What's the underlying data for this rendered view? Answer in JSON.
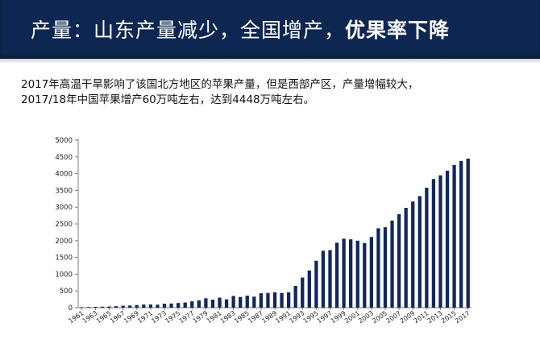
{
  "slide": {
    "title_part1": "产量：山东产量减少，全国增产，",
    "title_part2": "优果率下降",
    "description_line1": "2017年高温干旱影响了该国北方地区的苹果产量，但是西部产区，产量增幅较大，",
    "description_line2": "2017/18年中国苹果增产60万吨左右，达到4448万吨左右。"
  },
  "colors": {
    "title_bg": "#0e2752",
    "bar": "#12275a",
    "axis": "#808080"
  },
  "chart_data": {
    "type": "bar",
    "x": [
      1961,
      1962,
      1963,
      1964,
      1965,
      1966,
      1967,
      1968,
      1969,
      1970,
      1971,
      1972,
      1973,
      1974,
      1975,
      1976,
      1977,
      1978,
      1979,
      1980,
      1981,
      1982,
      1983,
      1984,
      1985,
      1986,
      1987,
      1988,
      1989,
      1990,
      1991,
      1992,
      1993,
      1994,
      1995,
      1996,
      1997,
      1998,
      1999,
      2000,
      2001,
      2002,
      2003,
      2004,
      2005,
      2006,
      2007,
      2008,
      2009,
      2010,
      2011,
      2012,
      2013,
      2014,
      2015,
      2016,
      2017
    ],
    "values": [
      15,
      20,
      25,
      30,
      35,
      45,
      60,
      65,
      80,
      95,
      95,
      90,
      120,
      125,
      140,
      155,
      190,
      220,
      280,
      240,
      300,
      250,
      350,
      320,
      360,
      330,
      430,
      440,
      460,
      440,
      460,
      650,
      900,
      1110,
      1400,
      1700,
      1720,
      1940,
      2060,
      2040,
      2000,
      1930,
      2110,
      2370,
      2400,
      2600,
      2790,
      2980,
      3170,
      3330,
      3580,
      3840,
      3950,
      4090,
      4260,
      4380,
      4450
    ],
    "x_tick_labels": [
      "1961",
      "1963",
      "1965",
      "1967",
      "1969",
      "1971",
      "1973",
      "1975",
      "1977",
      "1979",
      "1981",
      "1983",
      "1985",
      "1987",
      "1989",
      "1991",
      "1993",
      "1995",
      "1997",
      "1999",
      "2001",
      "2003",
      "2005",
      "2007",
      "2009",
      "2011",
      "2013",
      "2015",
      "2017"
    ],
    "y_tick_labels": [
      "0",
      "500",
      "1000",
      "1500",
      "2000",
      "2500",
      "3000",
      "3500",
      "4000",
      "4500",
      "5000"
    ],
    "ylim": [
      0,
      5000
    ],
    "title": "",
    "xlabel": "",
    "ylabel": "",
    "grid": false,
    "legend": "none"
  }
}
